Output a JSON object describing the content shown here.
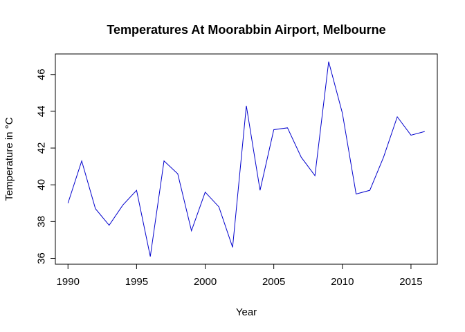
{
  "chart_data": {
    "type": "line",
    "title": "Temperatures At Moorabbin Airport, Melbourne",
    "xlabel": "Year",
    "ylabel": "Temperature in °C",
    "x": [
      1990,
      1991,
      1992,
      1993,
      1994,
      1995,
      1996,
      1997,
      1998,
      1999,
      2000,
      2001,
      2002,
      2003,
      2004,
      2005,
      2006,
      2007,
      2008,
      2009,
      2010,
      2011,
      2012,
      2013,
      2014,
      2015,
      2016
    ],
    "series": [
      {
        "values": [
          39.0,
          41.3,
          38.7,
          37.8,
          38.9,
          39.7,
          36.1,
          41.3,
          40.6,
          37.5,
          39.6,
          38.8,
          36.6,
          44.3,
          39.7,
          43.0,
          43.1,
          41.5,
          40.5,
          46.7,
          43.9,
          39.5,
          39.7,
          41.5,
          43.7,
          42.7,
          42.9
        ],
        "color": "#0000cd"
      }
    ],
    "xticks": [
      "1990",
      "1995",
      "2000",
      "2005",
      "2010",
      "2015"
    ],
    "yticks": [
      "36",
      "38",
      "40",
      "42",
      "44",
      "46"
    ],
    "xlim": [
      1989.08,
      2016.92
    ],
    "ylim": [
      35.68,
      47.12
    ],
    "grid": false,
    "legend": "none"
  }
}
